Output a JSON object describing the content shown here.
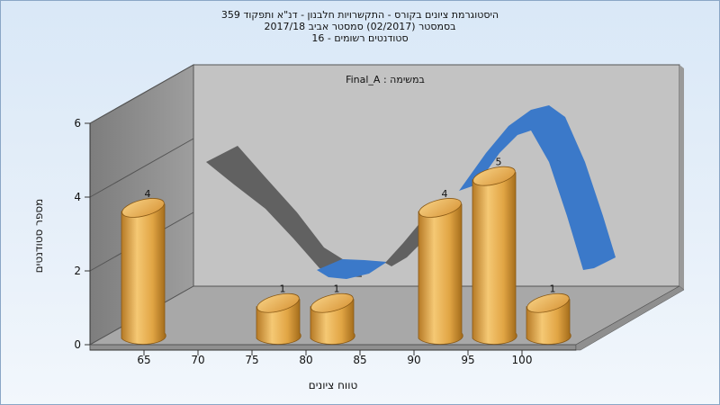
{
  "chart_data": {
    "type": "bar",
    "title_lines": [
      "היסטוגרמת ציונים בקורס - התקשרויות חלבנון - דנ\"א ותפקוד 359",
      "בסמסטר  (02/2017)  סמסטר אביב 2017/18",
      "סטודנטים רשומים - 16"
    ],
    "annotation": "במשימה : Final_A",
    "xlabel": "טווח ציונים",
    "ylabel": "מספר סטודנטים",
    "x_ticks": [
      65,
      70,
      75,
      80,
      85,
      90,
      95,
      100
    ],
    "y_ticks": [
      0,
      2,
      4,
      6
    ],
    "ylim": [
      0,
      6
    ],
    "xlim": [
      60,
      105
    ],
    "bins": [
      {
        "x": 65,
        "value": 4
      },
      {
        "x": 77.5,
        "value": 1
      },
      {
        "x": 82.5,
        "value": 1
      },
      {
        "x": 92.5,
        "value": 4
      },
      {
        "x": 97.5,
        "value": 5
      },
      {
        "x": 102.5,
        "value": 1
      }
    ],
    "grid": false,
    "legend": "none",
    "colors": {
      "bar_light": "#f3c46e",
      "bar_mid": "#d99a3a",
      "bar_dark": "#9a6319",
      "curve_gray": "#606060",
      "curve_blue": "#3a78c8",
      "back_wall": "#c2c2c2",
      "side_wall": "#8c8c8c",
      "floor": "#a7a7a7"
    }
  }
}
